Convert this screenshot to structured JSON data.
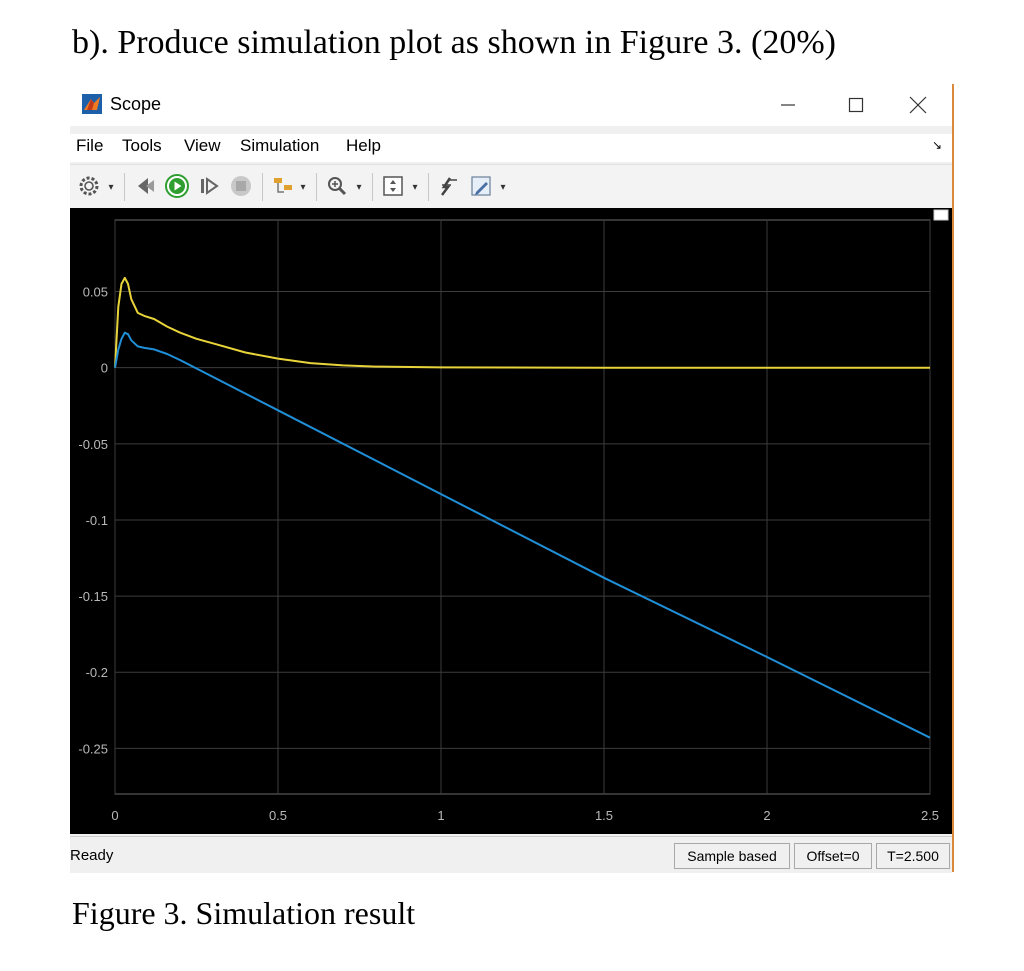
{
  "document": {
    "heading": "b).  Produce simulation plot as shown in Figure 3. (20%)",
    "caption": "Figure 3. Simulation result"
  },
  "window": {
    "title": "Scope",
    "controls": [
      "minimize-icon",
      "maximize-icon",
      "close-icon"
    ]
  },
  "menu": {
    "items": [
      "File",
      "Tools",
      "View",
      "Simulation",
      "Help"
    ]
  },
  "toolbar": {
    "icons": [
      "settings-icon",
      "step-back-icon",
      "run-icon",
      "step-forward-icon",
      "stop-icon",
      "highlight-icon",
      "zoom-in-icon",
      "axes-scaling-icon",
      "cursor-measurements-icon",
      "style-icon"
    ]
  },
  "status": {
    "text": "Ready",
    "mode": "Sample based",
    "offset": "Offset=0",
    "time": "T=2.500"
  },
  "colors": {
    "plot_background": "#000000",
    "grid": "#3c3c3c",
    "axis_text": "#b8b8b8",
    "series_yellow": "#e8d43a",
    "series_blue": "#1f8fd8"
  },
  "chart_data": {
    "type": "line",
    "title": "",
    "xlabel": "",
    "ylabel": "",
    "xlim": [
      0,
      2.5
    ],
    "ylim": [
      -0.28,
      0.097
    ],
    "xticks": [
      0,
      0.5,
      1,
      1.5,
      2,
      2.5
    ],
    "xtick_labels": [
      "0",
      "0.5",
      "1",
      "1.5",
      "2",
      "2.5"
    ],
    "yticks": [
      0.05,
      0,
      -0.05,
      -0.1,
      -0.15,
      -0.2,
      -0.25
    ],
    "ytick_labels": [
      "0.05",
      "0",
      "-0.05",
      "-0.1",
      "-0.15",
      "-0.2",
      "-0.25"
    ],
    "grid": true,
    "series": [
      {
        "color": "#e8d43a",
        "x": [
          0,
          0.01,
          0.02,
          0.03,
          0.04,
          0.05,
          0.07,
          0.09,
          0.12,
          0.16,
          0.2,
          0.25,
          0.3,
          0.4,
          0.5,
          0.6,
          0.7,
          0.8,
          1.0,
          1.2,
          1.5,
          2.0,
          2.5
        ],
        "y": [
          0,
          0.04,
          0.055,
          0.059,
          0.055,
          0.045,
          0.036,
          0.034,
          0.032,
          0.027,
          0.023,
          0.019,
          0.016,
          0.01,
          0.006,
          0.003,
          0.0015,
          0.0007,
          0.0002,
          0.0001,
          0,
          0,
          0
        ]
      },
      {
        "color": "#1f8fd8",
        "x": [
          0,
          0.01,
          0.02,
          0.03,
          0.04,
          0.05,
          0.07,
          0.09,
          0.12,
          0.16,
          0.2,
          0.5,
          1.0,
          1.5,
          2.0,
          2.5
        ],
        "y": [
          0,
          0.012,
          0.019,
          0.023,
          0.022,
          0.018,
          0.014,
          0.013,
          0.012,
          0.009,
          0.005,
          -0.028,
          -0.083,
          -0.138,
          -0.19,
          -0.243
        ]
      }
    ]
  }
}
